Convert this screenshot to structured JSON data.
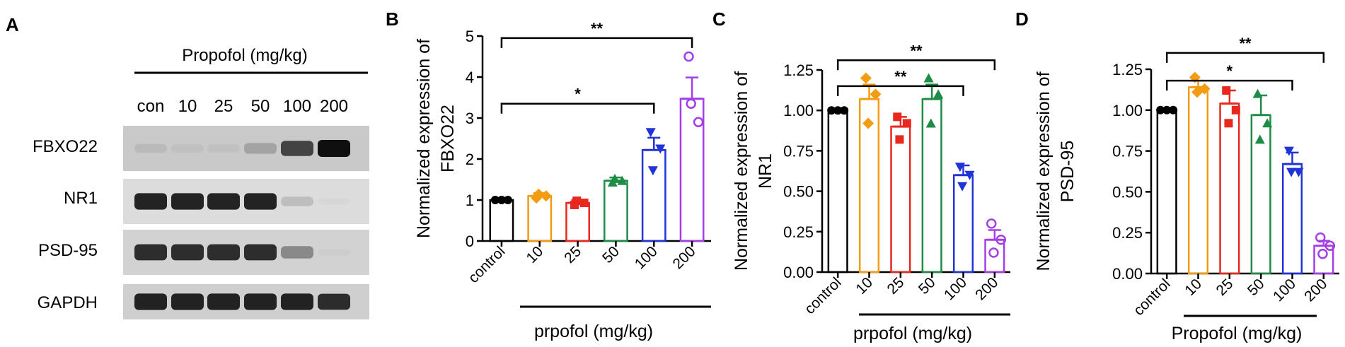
{
  "panels": {
    "a": "A",
    "b": "B",
    "c": "C",
    "d": "D"
  },
  "blot": {
    "title": "Propofol (mg/kg)",
    "lanes": [
      "con",
      "10",
      "25",
      "50",
      "100",
      "200"
    ],
    "rows": [
      {
        "label": "FBXO22",
        "intensity": [
          0.28,
          0.22,
          0.2,
          0.45,
          0.85,
          1.0
        ],
        "background": "#c9c9c9"
      },
      {
        "label": "NR1",
        "intensity": [
          0.95,
          0.95,
          0.95,
          0.95,
          0.35,
          0.05
        ],
        "background": "#dcdcdc"
      },
      {
        "label": "PSD-95",
        "intensity": [
          0.92,
          0.92,
          0.92,
          0.92,
          0.6,
          0.12
        ],
        "background": "#d2d2d2"
      },
      {
        "label": "GAPDH",
        "intensity": [
          0.95,
          0.95,
          0.95,
          0.95,
          0.95,
          0.92
        ],
        "background": "#cfcfcf"
      }
    ]
  },
  "chart_data": [
    {
      "type": "bar",
      "id": "b",
      "ylabel_line1": "Normalized expression of",
      "ylabel_line2": "FBXO22",
      "xlabel": "prpofol (mg/kg)",
      "categories": [
        "control",
        "10",
        "25",
        "50",
        "100",
        "200"
      ],
      "values": [
        1.0,
        1.1,
        0.93,
        1.47,
        2.22,
        3.47
      ],
      "errors": [
        0.02,
        0.07,
        0.07,
        0.08,
        0.3,
        0.52
      ],
      "points": [
        [
          1,
          1,
          1
        ],
        [
          1.05,
          1.1,
          1.14
        ],
        [
          0.88,
          0.93,
          0.98
        ],
        [
          1.43,
          1.47,
          1.52
        ],
        [
          2.65,
          2.25,
          1.72
        ],
        [
          4.5,
          2.9,
          3.35
        ]
      ],
      "markers": [
        "circle",
        "diamond",
        "square",
        "triangle",
        "triangle-down",
        "circle-open"
      ],
      "colors": [
        "#000000",
        "#f39c12",
        "#e8281e",
        "#1e8c46",
        "#1f33d6",
        "#a43ee6"
      ],
      "ylim": [
        0,
        5
      ],
      "yticks": [
        "0",
        "1",
        "2",
        "3",
        "4",
        "5"
      ],
      "sig": [
        {
          "from": 0,
          "to": 4,
          "label": "*",
          "y": 3.35
        },
        {
          "from": 0,
          "to": 5,
          "label": "**",
          "y": 4.95
        }
      ]
    },
    {
      "type": "bar",
      "id": "c",
      "ylabel_line1": "Normalized expression of",
      "ylabel_line2": "NR1",
      "xlabel": "prpofol (mg/kg)",
      "categories": [
        "control",
        "10",
        "25",
        "50",
        "100",
        "200"
      ],
      "values": [
        1.0,
        1.07,
        0.9,
        1.07,
        0.6,
        0.2
      ],
      "errors": [
        0.005,
        0.09,
        0.06,
        0.09,
        0.06,
        0.06
      ],
      "points": [
        [
          1,
          1,
          1
        ],
        [
          1.2,
          1.1,
          0.92
        ],
        [
          0.96,
          0.92,
          0.82
        ],
        [
          1.2,
          1.1,
          0.92
        ],
        [
          0.65,
          0.6,
          0.53
        ],
        [
          0.3,
          0.2,
          0.12
        ]
      ],
      "markers": [
        "circle",
        "diamond",
        "square",
        "triangle",
        "triangle-down",
        "circle-open"
      ],
      "colors": [
        "#000000",
        "#f39c12",
        "#e8281e",
        "#1e8c46",
        "#1f33d6",
        "#a43ee6"
      ],
      "ylim": [
        0,
        1.25
      ],
      "yticks": [
        "0.00",
        "0.25",
        "0.50",
        "0.75",
        "1.00",
        "1.25"
      ],
      "sig": [
        {
          "from": 0,
          "to": 4,
          "label": "**",
          "y": 1.15
        },
        {
          "from": 0,
          "to": 5,
          "label": "**",
          "y": 1.31
        }
      ]
    },
    {
      "type": "bar",
      "id": "d",
      "ylabel_line1": "Normalized expression of",
      "ylabel_line2": "PSD-95",
      "xlabel": "Propofol (mg/kg)",
      "categories": [
        "control",
        "10",
        "25",
        "50",
        "100",
        "200"
      ],
      "values": [
        1.0,
        1.14,
        1.04,
        0.97,
        0.67,
        0.17
      ],
      "errors": [
        0.005,
        0.04,
        0.08,
        0.12,
        0.07,
        0.03
      ],
      "points": [
        [
          1,
          1,
          1
        ],
        [
          1.2,
          1.13,
          1.11
        ],
        [
          1.12,
          1.0,
          0.92
        ],
        [
          1.1,
          0.92,
          0.82
        ],
        [
          0.75,
          0.62,
          0.62
        ],
        [
          0.22,
          0.17,
          0.12
        ]
      ],
      "markers": [
        "circle",
        "diamond",
        "square",
        "triangle",
        "triangle-down",
        "circle-open"
      ],
      "colors": [
        "#000000",
        "#f39c12",
        "#e8281e",
        "#1e8c46",
        "#1f33d6",
        "#a43ee6"
      ],
      "ylim": [
        0,
        1.25
      ],
      "yticks": [
        "0.00",
        "0.25",
        "0.50",
        "0.75",
        "1.00",
        "1.25"
      ],
      "sig": [
        {
          "from": 0,
          "to": 4,
          "label": "*",
          "y": 1.18
        },
        {
          "from": 0,
          "to": 5,
          "label": "**",
          "y": 1.35
        }
      ]
    }
  ]
}
